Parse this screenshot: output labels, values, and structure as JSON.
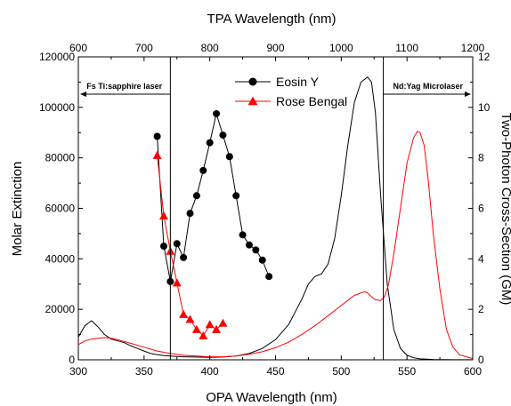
{
  "chart_data": {
    "type": "line",
    "x_axis_bottom": {
      "label": "OPA Wavelength (nm)",
      "lim": [
        300,
        600
      ],
      "ticks": [
        300,
        350,
        400,
        450,
        500,
        550,
        600
      ]
    },
    "x_axis_top": {
      "label": "TPA Wavelength (nm)",
      "lim": [
        600,
        1200
      ],
      "ticks": [
        600,
        700,
        800,
        900,
        1000,
        1100,
        1200
      ]
    },
    "y_axis_left": {
      "label": "Molar Extinction",
      "lim": [
        0,
        120000
      ],
      "ticks": [
        0,
        20000,
        40000,
        60000,
        80000,
        100000,
        120000
      ]
    },
    "y_axis_right": {
      "label": "Two-Photon Cross-Section (GM)",
      "lim": [
        0,
        12
      ],
      "ticks": [
        0,
        2,
        4,
        6,
        8,
        10,
        12
      ]
    },
    "grid": false,
    "legend": {
      "placement": "top-center",
      "entries": [
        {
          "name": "Eosin Y",
          "color": "#000000",
          "marker": "circle"
        },
        {
          "name": "Rose Bengal",
          "color": "#ff0000",
          "marker": "triangle"
        }
      ]
    },
    "annotations": [
      {
        "text": "Fs Ti:sapphire laser",
        "x_opa": 370,
        "direction": "left"
      },
      {
        "text": "Nd:Yag Microlaser",
        "x_opa": 532,
        "direction": "right"
      }
    ],
    "series": [
      {
        "name": "Eosin Y",
        "kind": "absorption",
        "axis": "left",
        "color": "#000000",
        "x": [
          300,
          305,
          310,
          315,
          320,
          325,
          330,
          335,
          340,
          345,
          350,
          355,
          360,
          365,
          370,
          375,
          380,
          390,
          400,
          410,
          420,
          430,
          440,
          450,
          460,
          470,
          475,
          480,
          485,
          490,
          495,
          500,
          505,
          510,
          515,
          520,
          523,
          526,
          530,
          535,
          540,
          545,
          550,
          555,
          560,
          570,
          580,
          600
        ],
        "y": [
          9000,
          13500,
          15500,
          13000,
          10000,
          8200,
          7500,
          6800,
          5500,
          4500,
          3500,
          2500,
          2000,
          1700,
          1500,
          1300,
          1200,
          1100,
          1000,
          1100,
          1500,
          2500,
          4500,
          8000,
          14000,
          24000,
          30000,
          33000,
          34000,
          38000,
          48000,
          65000,
          85000,
          102000,
          110000,
          112000,
          110000,
          98000,
          65000,
          30000,
          12000,
          4500,
          1800,
          800,
          400,
          150,
          80,
          50
        ]
      },
      {
        "name": "Rose Bengal",
        "kind": "absorption",
        "axis": "left",
        "color": "#ff0000",
        "x": [
          300,
          305,
          310,
          315,
          320,
          325,
          330,
          340,
          350,
          360,
          370,
          380,
          390,
          400,
          410,
          420,
          430,
          440,
          450,
          460,
          470,
          480,
          490,
          500,
          505,
          510,
          515,
          518,
          520,
          523,
          526,
          530,
          533,
          536,
          540,
          545,
          550,
          555,
          558,
          560,
          563,
          566,
          570,
          575,
          580,
          585,
          590,
          600
        ],
        "y": [
          6000,
          7500,
          8200,
          8500,
          8800,
          8500,
          8000,
          6500,
          5000,
          3500,
          2500,
          1800,
          1500,
          1200,
          1200,
          1500,
          2200,
          3200,
          4800,
          7000,
          10000,
          13500,
          17500,
          21500,
          23500,
          25500,
          26500,
          27000,
          26500,
          25000,
          23800,
          23500,
          25000,
          30000,
          42000,
          60000,
          78000,
          88000,
          90500,
          90000,
          85000,
          72000,
          50000,
          28000,
          12000,
          5000,
          2000,
          500
        ]
      },
      {
        "name": "Eosin Y",
        "kind": "two-photon",
        "axis": "right",
        "color": "#000000",
        "marker": "circle",
        "x": [
          720,
          730,
          740,
          750,
          760,
          770,
          780,
          790,
          800,
          810,
          820,
          830,
          840,
          850,
          860,
          870,
          880,
          890
        ],
        "y": [
          8.85,
          4.5,
          3.1,
          4.6,
          4.05,
          5.8,
          6.5,
          7.5,
          8.6,
          9.75,
          8.9,
          8.05,
          6.5,
          4.95,
          4.55,
          4.35,
          3.95,
          3.3
        ]
      },
      {
        "name": "Rose Bengal",
        "kind": "two-photon",
        "axis": "right",
        "color": "#ff0000",
        "marker": "triangle",
        "x": [
          720,
          730,
          740,
          750,
          760,
          770,
          780,
          790,
          800,
          810,
          820
        ],
        "y": [
          8.1,
          5.7,
          4.3,
          3.05,
          1.8,
          1.6,
          1.2,
          0.95,
          1.4,
          1.2,
          1.45
        ]
      }
    ]
  }
}
